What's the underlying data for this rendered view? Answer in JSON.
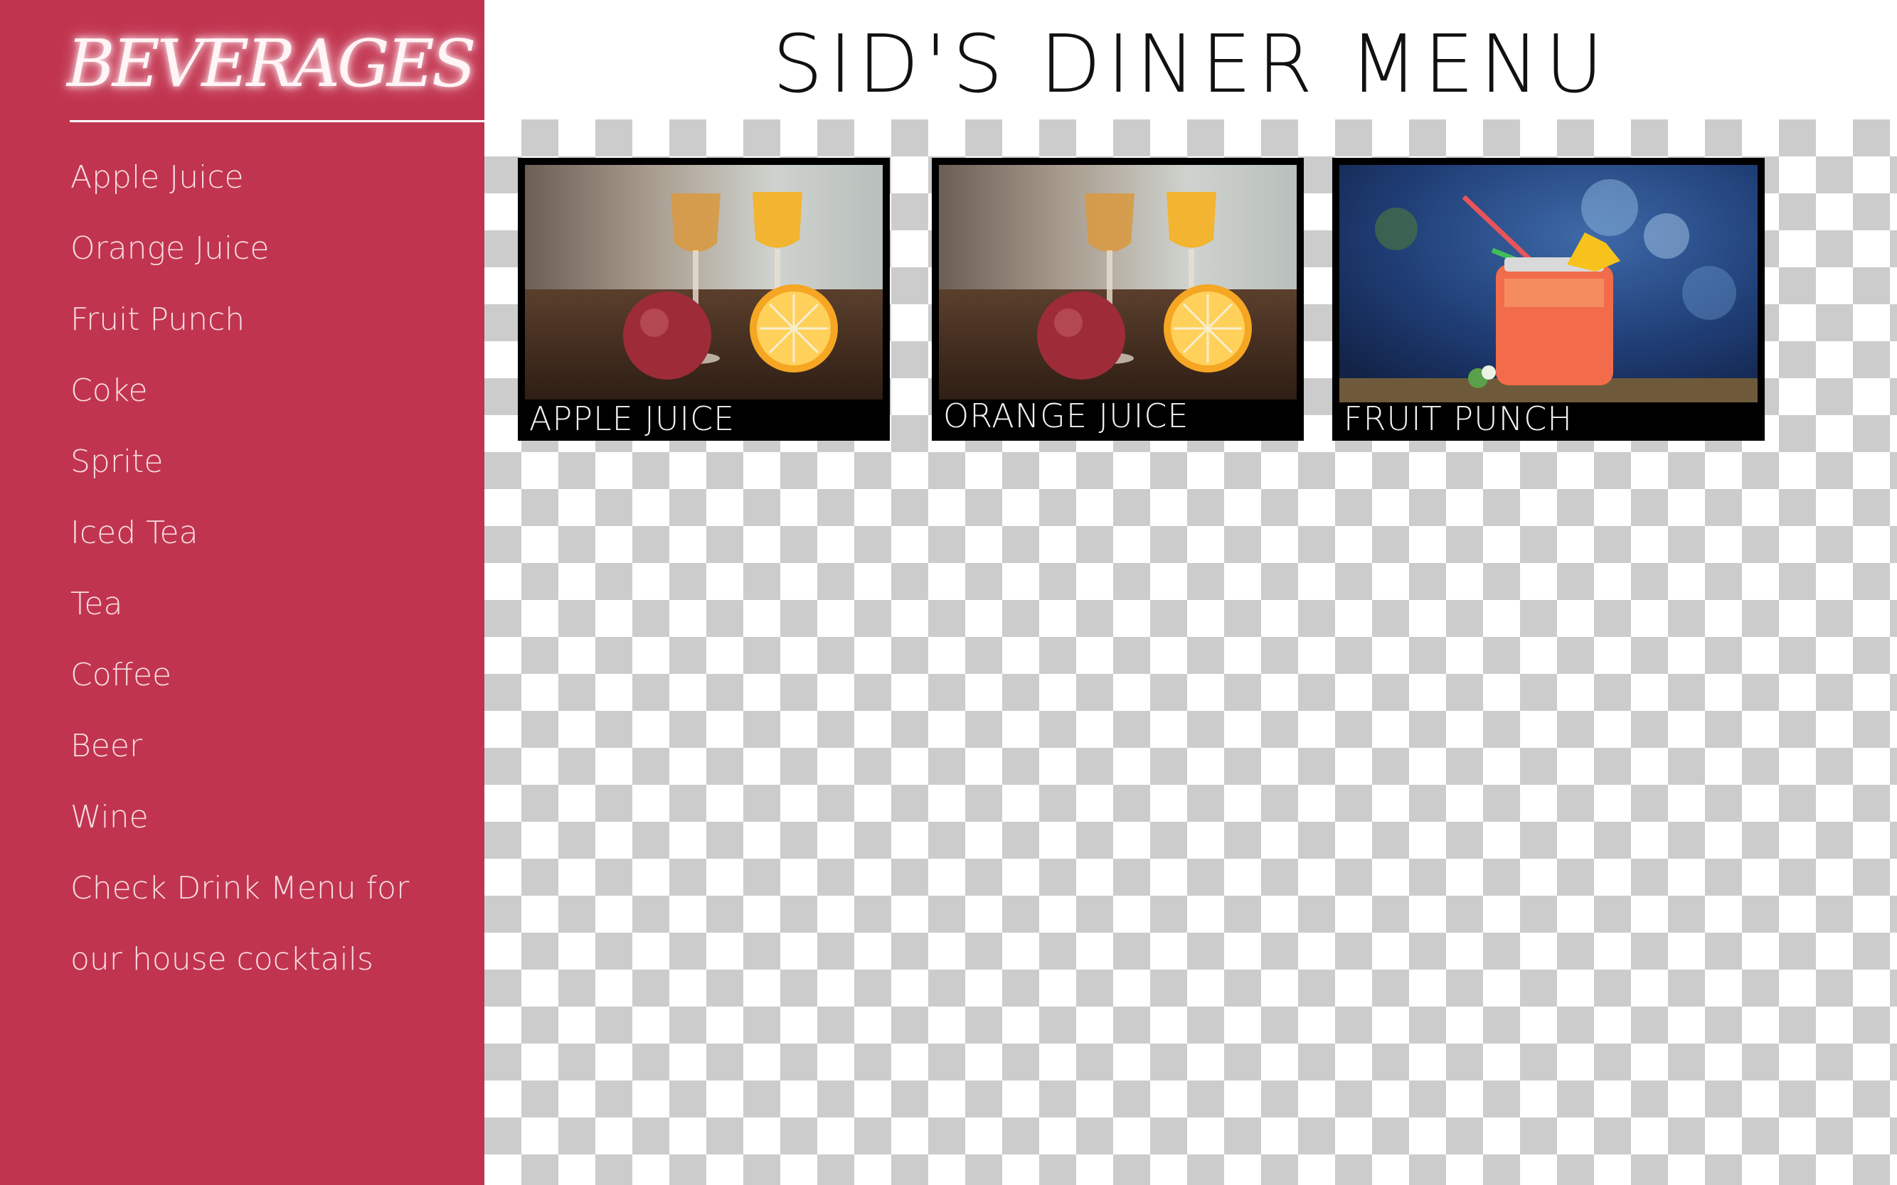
{
  "sidebar": {
    "title": "BEVERAGES",
    "items": [
      {
        "label": "Apple Juice"
      },
      {
        "label": "Orange Juice"
      },
      {
        "label": "Fruit Punch"
      },
      {
        "label": "Coke"
      },
      {
        "label": "Sprite"
      },
      {
        "label": "Iced Tea"
      },
      {
        "label": "Tea"
      },
      {
        "label": "Coffee"
      },
      {
        "label": "Beer"
      },
      {
        "label": "Wine"
      },
      {
        "label": "Check Drink Menu for our house cocktails"
      }
    ]
  },
  "header": {
    "title": "SID'S DINER MENU"
  },
  "cards": [
    {
      "caption": "APPLE JUICE",
      "image": "apple-and-orange-juice-photo"
    },
    {
      "caption": "ORANGE JUICE",
      "image": "apple-and-orange-juice-photo"
    },
    {
      "caption": "FRUIT PUNCH",
      "image": "fruit-punch-mason-jar-photo"
    }
  ],
  "colors": {
    "sidebar_bg": "#c1344f",
    "sidebar_text": "#f7dde3",
    "card_bg": "#000000",
    "page_bg": "#ffffff"
  }
}
